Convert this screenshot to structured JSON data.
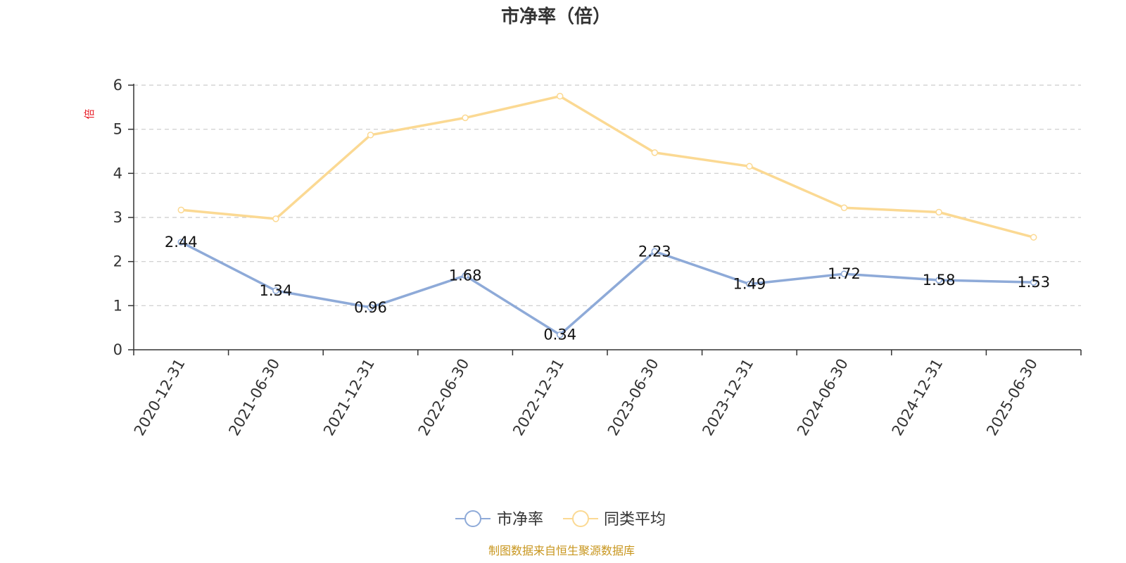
{
  "chart_data": {
    "type": "line",
    "title": "市净率（倍）",
    "ylabel": "倍",
    "ylim": [
      0,
      6
    ],
    "yticks": [
      0,
      1,
      2,
      3,
      4,
      5,
      6
    ],
    "grid": true,
    "legend_position": "bottom",
    "categories": [
      "2020-12-31",
      "2021-06-30",
      "2021-12-31",
      "2022-06-30",
      "2022-12-31",
      "2023-06-30",
      "2023-12-31",
      "2024-06-30",
      "2024-12-31",
      "2025-06-30"
    ],
    "series": [
      {
        "name": "市净率",
        "color": "#8eaad8",
        "values": [
          2.44,
          1.34,
          0.96,
          1.68,
          0.34,
          2.23,
          1.49,
          1.72,
          1.58,
          1.53
        ],
        "labels": [
          "2.44",
          "1.34",
          "0.96",
          "1.68",
          "0.34",
          "2.23",
          "1.49",
          "1.72",
          "1.58",
          "1.53"
        ]
      },
      {
        "name": "同类平均",
        "color": "#fbd993",
        "values": [
          3.17,
          2.97,
          4.87,
          5.26,
          5.75,
          4.47,
          4.16,
          3.22,
          3.12,
          2.55
        ]
      }
    ]
  },
  "source_note": "制图数据来自恒生聚源数据库"
}
